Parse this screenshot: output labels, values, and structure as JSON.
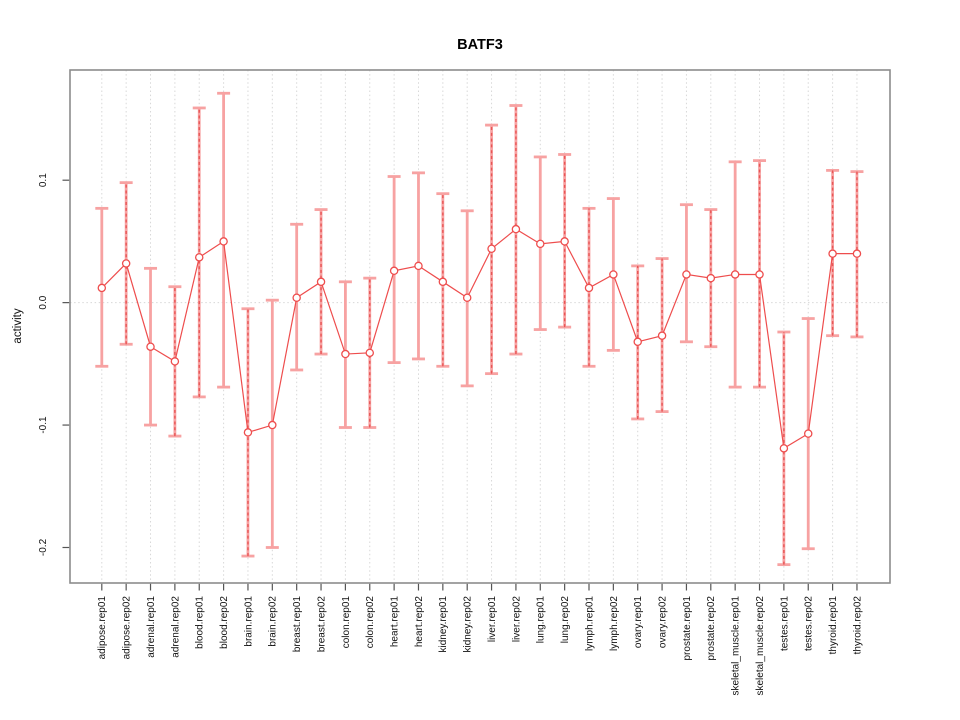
{
  "chart_data": {
    "type": "line",
    "title": "BATF3",
    "xlabel": "",
    "ylabel": "activity",
    "ylim": [
      -0.229,
      0.19
    ],
    "grid": "vertical dotted gridline per category plus dotted horizontal line at y=0",
    "legend": "none",
    "yticks": [
      -0.2,
      -0.1,
      0.0,
      0.1
    ],
    "ytick_labels": [
      "-0.2",
      "-0.1",
      "0.0",
      "0.1"
    ],
    "categories": [
      "adipose.rep01",
      "adipose.rep02",
      "adrenal.rep01",
      "adrenal.rep02",
      "blood.rep01",
      "blood.rep02",
      "brain.rep01",
      "brain.rep02",
      "breast.rep01",
      "breast.rep02",
      "colon.rep01",
      "colon.rep02",
      "heart.rep01",
      "heart.rep02",
      "kidney.rep01",
      "kidney.rep02",
      "liver.rep01",
      "liver.rep02",
      "lung.rep01",
      "lung.rep02",
      "lymph.rep01",
      "lymph.rep02",
      "ovary.rep01",
      "ovary.rep02",
      "prostate.rep01",
      "prostate.rep02",
      "skeletal_muscle.rep01",
      "skeletal_muscle.rep02",
      "testes.rep01",
      "testes.rep02",
      "thyroid.rep01",
      "thyroid.rep02"
    ],
    "series": [
      {
        "name": "activity",
        "values": [
          0.012,
          0.032,
          -0.036,
          -0.048,
          0.037,
          0.05,
          -0.106,
          -0.1,
          0.004,
          0.017,
          -0.042,
          -0.041,
          0.026,
          0.03,
          0.017,
          0.004,
          0.044,
          0.06,
          0.048,
          0.05,
          0.012,
          0.023,
          -0.032,
          -0.027,
          0.023,
          0.02,
          0.023,
          0.023,
          -0.119,
          -0.107,
          0.04,
          0.04
        ],
        "error_low": [
          -0.052,
          -0.034,
          -0.1,
          -0.109,
          -0.077,
          -0.069,
          -0.207,
          -0.2,
          -0.055,
          -0.042,
          -0.102,
          -0.102,
          -0.049,
          -0.046,
          -0.052,
          -0.068,
          -0.058,
          -0.042,
          -0.022,
          -0.02,
          -0.052,
          -0.039,
          -0.095,
          -0.089,
          -0.032,
          -0.036,
          -0.069,
          -0.069,
          -0.214,
          -0.201,
          -0.027,
          -0.028
        ],
        "error_high": [
          0.077,
          0.098,
          0.028,
          0.013,
          0.159,
          0.171,
          -0.005,
          0.002,
          0.064,
          0.076,
          0.017,
          0.02,
          0.103,
          0.106,
          0.089,
          0.075,
          0.145,
          0.161,
          0.119,
          0.121,
          0.077,
          0.085,
          0.03,
          0.036,
          0.08,
          0.076,
          0.115,
          0.116,
          -0.024,
          -0.013,
          0.108,
          0.107
        ],
        "dashed_whisker": [
          false,
          true,
          false,
          true,
          true,
          false,
          true,
          false,
          false,
          true,
          false,
          true,
          false,
          false,
          true,
          false,
          true,
          true,
          false,
          true,
          true,
          false,
          true,
          true,
          false,
          true,
          false,
          true,
          true,
          false,
          true,
          true
        ]
      }
    ],
    "colors": {
      "whisker": "#f7a2a2",
      "whisker_dash": "#e85555",
      "line": "#ee4d4d",
      "point_stroke": "#ee4d4d",
      "point_fill": "#ffffff",
      "grid": "#d8d8d8",
      "axis_box": "#8c8c8c",
      "tick": "#555555",
      "text": "#111111",
      "title": "#000000"
    }
  }
}
